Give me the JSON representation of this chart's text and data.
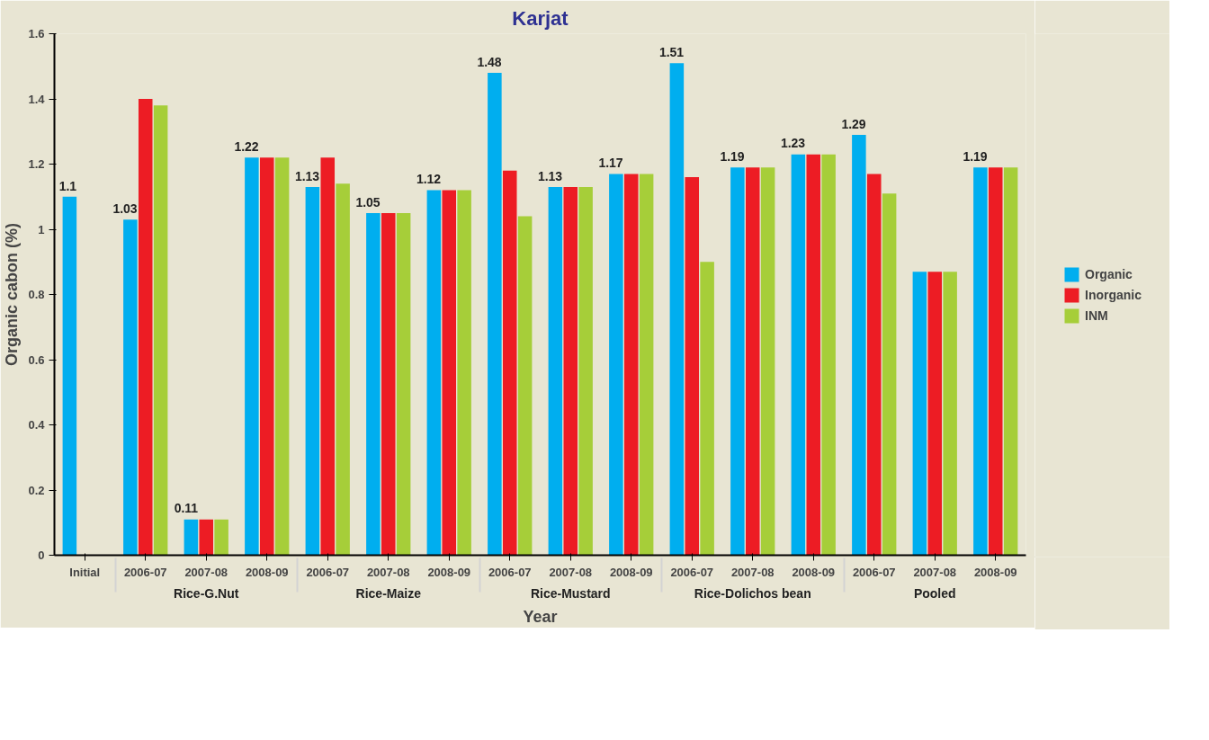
{
  "chart_data": {
    "type": "bar",
    "title": "Karjat",
    "xlabel": "Year",
    "ylabel": "Organic cabon (%)",
    "categories": [
      "Initial",
      "2006-07",
      "2007-08",
      "2008-09",
      "2006-07",
      "2007-08",
      "2008-09",
      "2006-07",
      "2007-08",
      "2008-09",
      "2006-07",
      "2007-08",
      "2008-09",
      "2006-07",
      "2007-08",
      "2008-09"
    ],
    "annotations": [
      "Rice-G.Nut",
      "Rice-Maize",
      "Rice-Mustard",
      "Rice-Dolichos bean",
      "Pooled"
    ],
    "series": [
      {
        "name": "Organic",
        "color": "#00aeef",
        "values": [
          1.1,
          1.03,
          0.11,
          1.22,
          1.13,
          1.05,
          1.12,
          1.48,
          1.13,
          1.17,
          1.51,
          1.19,
          1.23,
          1.29,
          0.87,
          1.19
        ],
        "value_labels": [
          "1.1",
          "1.03",
          "0.11",
          "1.22",
          "1.13",
          "1.05",
          "1.12",
          "1.48",
          "1.13",
          "1.17",
          "1.51",
          "1.19",
          "1.23",
          "1.29",
          null,
          "1.19"
        ]
      },
      {
        "name": "Inorganic",
        "color": "#ed1c24",
        "values": [
          null,
          1.4,
          0.11,
          1.22,
          1.22,
          1.05,
          1.12,
          1.18,
          1.13,
          1.17,
          1.16,
          1.19,
          1.23,
          1.17,
          0.87,
          1.19
        ]
      },
      {
        "name": "INM",
        "color": "#a6ce39",
        "values": [
          null,
          1.38,
          0.11,
          1.22,
          1.14,
          1.05,
          1.12,
          1.04,
          1.13,
          1.17,
          0.9,
          1.19,
          1.23,
          1.11,
          0.87,
          1.19
        ]
      }
    ],
    "ylim": [
      0,
      1.6
    ],
    "yticks": [
      0,
      0.2,
      0.4,
      0.6,
      0.8,
      1,
      1.2,
      1.4,
      1.6
    ],
    "grid": false,
    "legend": "right"
  }
}
